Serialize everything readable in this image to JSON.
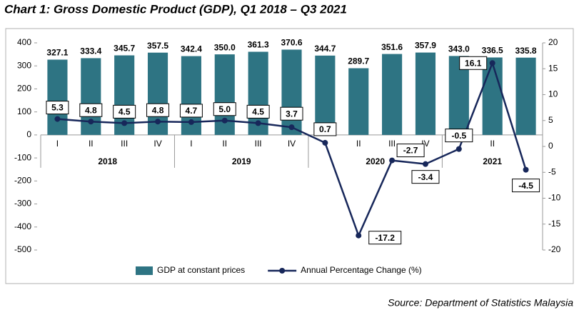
{
  "chart_data": {
    "type": "bar-line",
    "title": "Chart 1: Gross Domestic Product (GDP), Q1 2018 – Q3 2021",
    "source": "Source: Department of Statistics Malaysia",
    "categories": [
      "I",
      "II",
      "III",
      "IV",
      "I",
      "II",
      "III",
      "IV",
      null,
      "II",
      "III",
      "IV",
      null,
      "II",
      null
    ],
    "groups": [
      {
        "name": "2018",
        "count": 4
      },
      {
        "name": "2019",
        "count": 4
      },
      {
        "name": "2020",
        "count": 4
      },
      {
        "name": "2021",
        "count": 3
      }
    ],
    "series": [
      {
        "name": "GDP at constant prices",
        "type": "bar",
        "color": "#2e7483",
        "values": [
          327.1,
          333.4,
          345.7,
          357.5,
          342.4,
          350.0,
          361.3,
          370.6,
          344.7,
          289.7,
          351.6,
          357.9,
          343.0,
          336.5,
          335.8
        ],
        "value_labels": [
          "327.1",
          "333.4",
          "345.7",
          "357.5",
          "342.4",
          "350.0",
          "361.3",
          "370.6",
          "344.7",
          "289.7",
          "351.6",
          "357.9",
          "343.0",
          "336.5",
          "335.8"
        ]
      },
      {
        "name": "Annual Percentage Change (%)",
        "type": "line",
        "color": "#17275a",
        "axis": "y2",
        "values": [
          5.3,
          4.8,
          4.5,
          4.8,
          4.7,
          5.0,
          4.5,
          3.7,
          0.7,
          -17.2,
          -2.7,
          -3.4,
          -0.5,
          16.1,
          -4.5
        ],
        "value_labels": [
          "5.3",
          "4.8",
          "4.5",
          "4.8",
          "4.7",
          "5.0",
          "4.5",
          "3.7",
          "0.7",
          "-17.2",
          "-2.7",
          "-3.4",
          "-0.5",
          "16.1",
          "-4.5"
        ]
      }
    ],
    "ylim": [
      -500,
      400
    ],
    "yticks": [
      -500,
      -400,
      -300,
      -200,
      -100,
      0,
      100,
      200,
      300,
      400
    ],
    "y2lim": [
      -20,
      20
    ],
    "y2ticks": [
      -20,
      -15,
      -10,
      -5,
      0,
      5,
      10,
      15,
      20
    ],
    "grid": false,
    "legend": "bottom"
  }
}
